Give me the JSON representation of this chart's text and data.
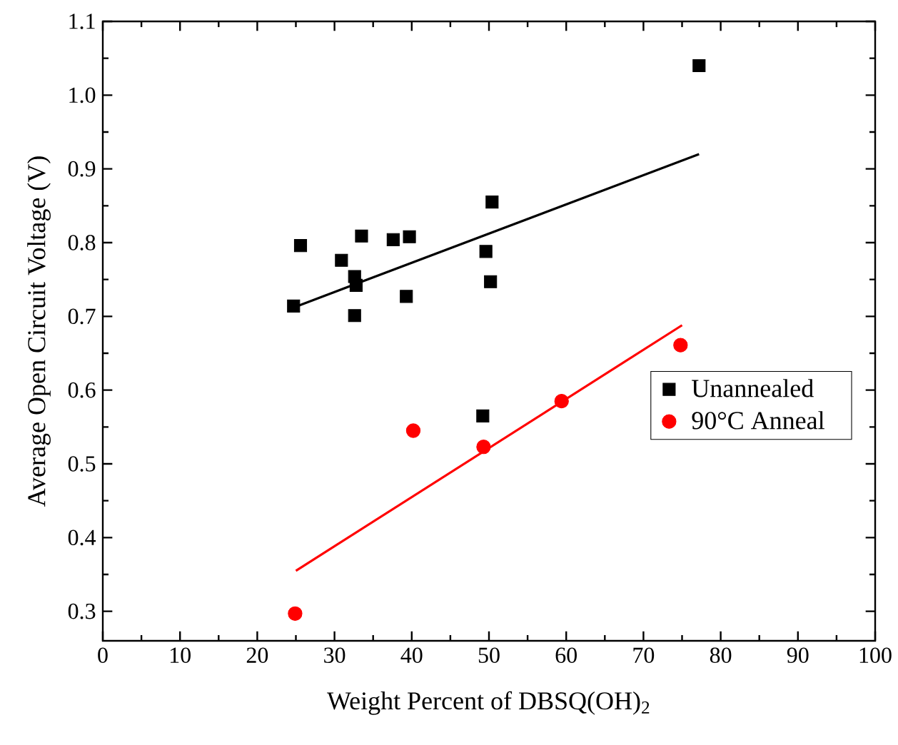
{
  "chart_data": {
    "type": "scatter",
    "xlabel": "Weight Percent of DBSQ(OH)$_{2}$",
    "ylabel": "Average Open Circuit Voltage (V)",
    "xlim": [
      0,
      100
    ],
    "ylim": [
      0.26,
      1.1
    ],
    "xticks": [
      0,
      10,
      20,
      30,
      40,
      50,
      60,
      70,
      80,
      90,
      100
    ],
    "yticks": [
      {
        "value": 0.3,
        "label": "0.3"
      },
      {
        "value": 0.4,
        "label": "0.4"
      },
      {
        "value": 0.5,
        "label": "0.5"
      },
      {
        "value": 0.6,
        "label": "0.6"
      },
      {
        "value": 0.7,
        "label": "0.7"
      },
      {
        "value": 0.8,
        "label": "0.8"
      },
      {
        "value": 0.9,
        "label": "0.9"
      },
      {
        "value": 1.0,
        "label": "1.0"
      },
      {
        "value": 1.1,
        "label": "1.1"
      }
    ],
    "grid": false,
    "legend": "right",
    "series": [
      {
        "name": "Unannealed",
        "marker": "square",
        "color": "#000000",
        "x": [
          24.7,
          25.6,
          30.9,
          32.6,
          32.8,
          32.6,
          33.5,
          37.6,
          39.7,
          39.3,
          49.6,
          50.2,
          50.4,
          49.2,
          77.2
        ],
        "values": [
          0.714,
          0.796,
          0.776,
          0.754,
          0.742,
          0.701,
          0.809,
          0.804,
          0.808,
          0.727,
          0.788,
          0.747,
          0.855,
          0.565,
          1.04
        ]
      },
      {
        "name": "90°C Anneal",
        "marker": "circle",
        "color": "#ff0000",
        "x": [
          24.9,
          40.2,
          49.3,
          59.4,
          74.8
        ],
        "values": [
          0.297,
          0.545,
          0.523,
          0.585,
          0.661
        ]
      },
      {
        "type": "line",
        "color": "#000000",
        "x": [
          24.7,
          77.2
        ],
        "values": [
          0.712,
          0.92
        ]
      },
      {
        "type": "line",
        "color": "#ff0000",
        "x": [
          25,
          75
        ],
        "values": [
          0.355,
          0.688
        ]
      }
    ]
  }
}
